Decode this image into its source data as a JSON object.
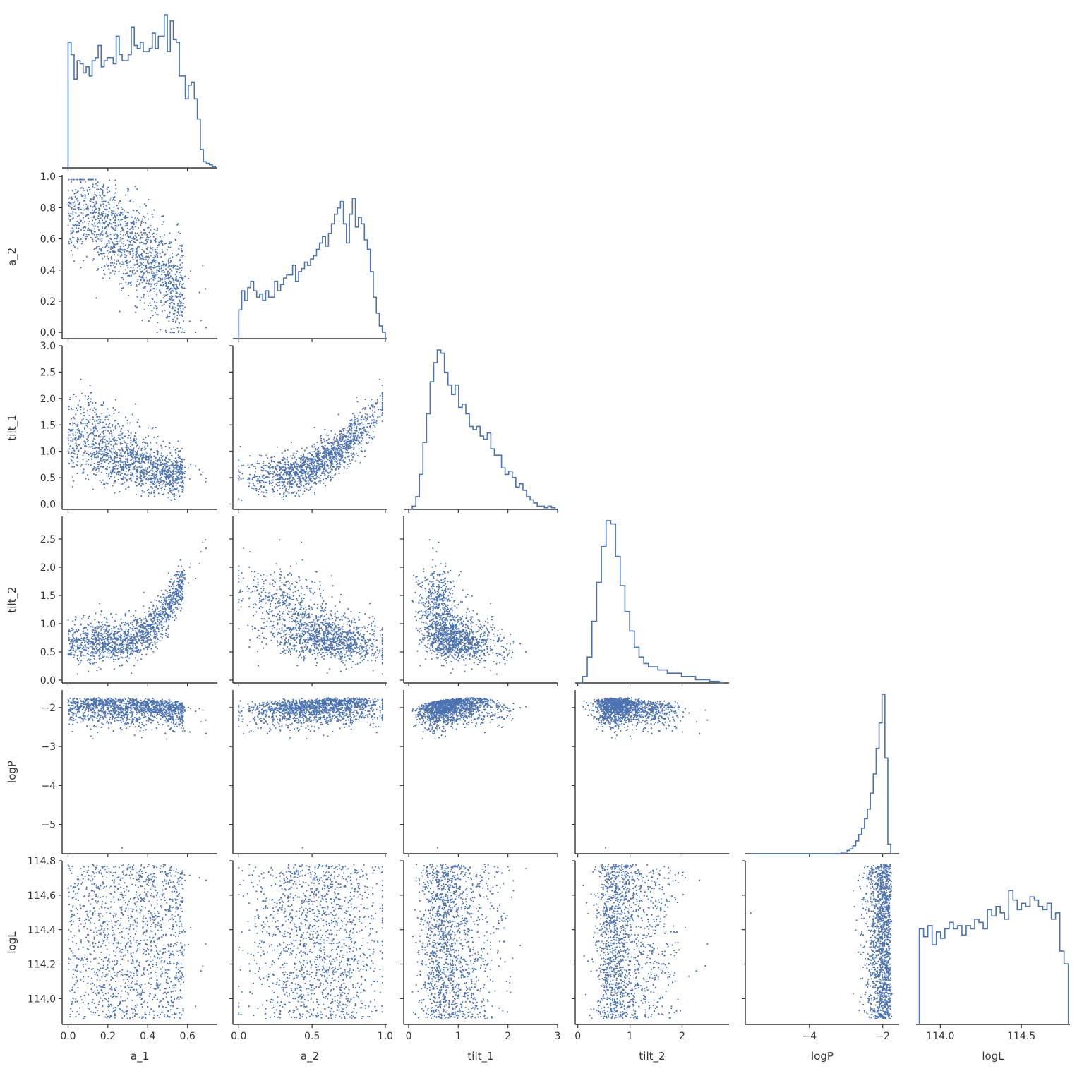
{
  "chart_data": {
    "type": "scatter",
    "title": "",
    "variables": [
      "a_1",
      "a_2",
      "tilt_1",
      "tilt_2",
      "logP",
      "logL"
    ],
    "axis_labels": {
      "a_1": "a_1",
      "a_2": "a_2",
      "tilt_1": "tilt_1",
      "tilt_2": "tilt_2",
      "logP": "logP",
      "logL": "logL"
    },
    "ranges": {
      "a_1": [
        -0.03,
        0.75
      ],
      "a_2": [
        -0.04,
        1.01
      ],
      "tilt_1": [
        -0.1,
        3.0
      ],
      "tilt_2": [
        -0.05,
        2.9
      ],
      "logP": [
        -5.75,
        -1.55
      ],
      "logL": [
        113.85,
        114.8
      ]
    },
    "ticks": {
      "a_1": [
        {
          "v": 0.0,
          "label": "0.0"
        },
        {
          "v": 0.2,
          "label": "0.2"
        },
        {
          "v": 0.4,
          "label": "0.4"
        },
        {
          "v": 0.6,
          "label": "0.6"
        }
      ],
      "a_2": [
        {
          "v": 0.0,
          "label": "0.0"
        },
        {
          "v": 0.2,
          "label": "0.2"
        },
        {
          "v": 0.4,
          "label": "0.4"
        },
        {
          "v": 0.6,
          "label": "0.6"
        },
        {
          "v": 0.8,
          "label": "0.8"
        },
        {
          "v": 1.0,
          "label": "1.0"
        }
      ],
      "a_2_x": [
        {
          "v": 0.0,
          "label": "0.0"
        },
        {
          "v": 0.5,
          "label": "0.5"
        },
        {
          "v": 1.0,
          "label": "1.0"
        }
      ],
      "tilt_1": [
        {
          "v": 0.0,
          "label": "0.0"
        },
        {
          "v": 0.5,
          "label": "0.5"
        },
        {
          "v": 1.0,
          "label": "1.0"
        },
        {
          "v": 1.5,
          "label": "1.5"
        },
        {
          "v": 2.0,
          "label": "2.0"
        },
        {
          "v": 2.5,
          "label": "2.5"
        },
        {
          "v": 3.0,
          "label": "3.0"
        }
      ],
      "tilt_1_x": [
        {
          "v": 0,
          "label": "0"
        },
        {
          "v": 1,
          "label": "1"
        },
        {
          "v": 2,
          "label": "2"
        },
        {
          "v": 3,
          "label": "3"
        }
      ],
      "tilt_2": [
        {
          "v": 0.0,
          "label": "0.0"
        },
        {
          "v": 0.5,
          "label": "0.5"
        },
        {
          "v": 1.0,
          "label": "1.0"
        },
        {
          "v": 1.5,
          "label": "1.5"
        },
        {
          "v": 2.0,
          "label": "2.0"
        },
        {
          "v": 2.5,
          "label": "2.5"
        }
      ],
      "tilt_2_x": [
        {
          "v": 0,
          "label": "0"
        },
        {
          "v": 1,
          "label": "1"
        },
        {
          "v": 2,
          "label": "2"
        }
      ],
      "logP": [
        {
          "v": -5,
          "label": "−5"
        },
        {
          "v": -4,
          "label": "−4"
        },
        {
          "v": -3,
          "label": "−3"
        },
        {
          "v": -2,
          "label": "−2"
        }
      ],
      "logP_x": [
        {
          "v": -4,
          "label": "−4"
        },
        {
          "v": -2,
          "label": "−2"
        }
      ],
      "logL": [
        {
          "v": 114.0,
          "label": "114.0"
        },
        {
          "v": 114.2,
          "label": "114.2"
        },
        {
          "v": 114.4,
          "label": "114.4"
        },
        {
          "v": 114.6,
          "label": "114.6"
        },
        {
          "v": 114.8,
          "label": "114.8"
        }
      ],
      "logL_x": [
        {
          "v": 114.0,
          "label": "114.0"
        },
        {
          "v": 114.5,
          "label": "114.5"
        }
      ]
    },
    "color": "#4c72b0",
    "n_samples": 1500,
    "histograms": {
      "a_1": [
        0.82,
        0.74,
        0.58,
        0.7,
        0.68,
        0.62,
        0.66,
        0.6,
        0.7,
        0.72,
        0.8,
        0.66,
        0.7,
        0.72,
        0.72,
        0.68,
        0.86,
        0.74,
        0.7,
        0.7,
        0.74,
        0.92,
        0.8,
        0.78,
        0.82,
        0.76,
        0.76,
        0.78,
        0.88,
        0.78,
        0.86,
        0.86,
        1.0,
        0.76,
        0.96,
        0.84,
        0.82,
        0.6,
        0.6,
        0.45,
        0.54,
        0.56,
        0.45,
        0.32,
        0.12,
        0.04,
        0.03,
        0.02,
        0.01
      ],
      "a_2": [
        0.18,
        0.3,
        0.24,
        0.32,
        0.36,
        0.3,
        0.26,
        0.28,
        0.24,
        0.3,
        0.26,
        0.26,
        0.36,
        0.3,
        0.34,
        0.38,
        0.4,
        0.4,
        0.46,
        0.36,
        0.42,
        0.44,
        0.48,
        0.46,
        0.5,
        0.52,
        0.56,
        0.6,
        0.64,
        0.58,
        0.66,
        0.72,
        0.78,
        0.82,
        0.86,
        0.72,
        0.6,
        0.78,
        0.88,
        0.7,
        0.76,
        0.72,
        0.62,
        0.56,
        0.42,
        0.26,
        0.16,
        0.08,
        0.04
      ],
      "tilt_1": [
        0.0,
        0.02,
        0.08,
        0.22,
        0.42,
        0.6,
        0.8,
        0.92,
        1.0,
        0.98,
        0.86,
        0.78,
        0.72,
        0.78,
        0.64,
        0.66,
        0.6,
        0.52,
        0.5,
        0.52,
        0.46,
        0.44,
        0.48,
        0.38,
        0.34,
        0.34,
        0.26,
        0.22,
        0.24,
        0.2,
        0.14,
        0.16,
        0.12,
        0.08,
        0.06,
        0.04,
        0.02,
        0.02,
        0.01,
        0.02,
        0.01
      ],
      "tilt_2": [
        0.0,
        0.04,
        0.16,
        0.38,
        0.62,
        0.84,
        1.0,
        0.98,
        0.78,
        0.6,
        0.44,
        0.32,
        0.22,
        0.16,
        0.12,
        0.1,
        0.1,
        0.08,
        0.08,
        0.06,
        0.06,
        0.06,
        0.04,
        0.04,
        0.04,
        0.02,
        0.02,
        0.02,
        0.01,
        0.01,
        0.0
      ],
      "logP": [
        0.0,
        0.0,
        0.0,
        0.0,
        0.0,
        0.0,
        0.0,
        0.0,
        0.0,
        0.0,
        0.0,
        0.0,
        0.0,
        0.0,
        0.0,
        0.0,
        0.0,
        0.0,
        0.0,
        0.0,
        0.0,
        0.0,
        0.0,
        0.0,
        0.0,
        0.0,
        0.0,
        0.0,
        0.0,
        0.0,
        0.0,
        0.01,
        0.01,
        0.02,
        0.03,
        0.05,
        0.08,
        0.12,
        0.16,
        0.22,
        0.28,
        0.38,
        0.5,
        0.66,
        0.82,
        1.0,
        0.6,
        0.06,
        0.0
      ],
      "logL": [
        0.6,
        0.55,
        0.62,
        0.5,
        0.58,
        0.54,
        0.6,
        0.64,
        0.6,
        0.62,
        0.56,
        0.62,
        0.6,
        0.66,
        0.64,
        0.6,
        0.72,
        0.68,
        0.74,
        0.7,
        0.66,
        0.84,
        0.78,
        0.72,
        0.76,
        0.74,
        0.8,
        0.78,
        0.74,
        0.72,
        0.76,
        0.66,
        0.7,
        0.46,
        0.38
      ]
    }
  }
}
